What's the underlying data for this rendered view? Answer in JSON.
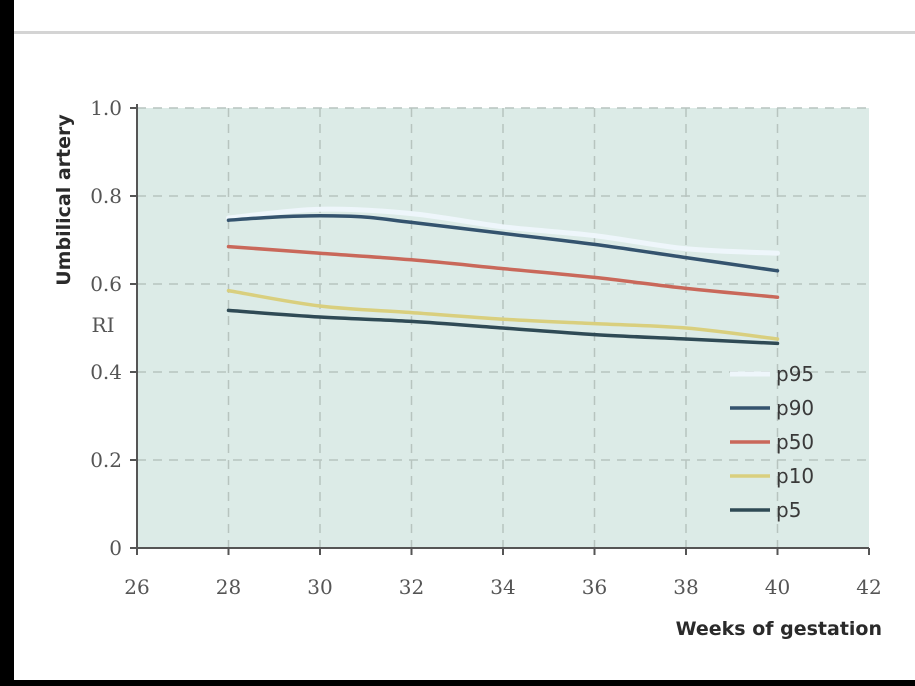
{
  "chart_data": {
    "type": "line",
    "xlabel": "Weeks of gestation",
    "ylabel_top": "Umbilical artery",
    "ylabel_inner": "RI",
    "xlim": [
      26,
      42
    ],
    "ylim": [
      0,
      1.0
    ],
    "x_ticks": [
      "26",
      "28",
      "30",
      "32",
      "34",
      "36",
      "38",
      "40",
      "42"
    ],
    "y_ticks": [
      {
        "value": 0,
        "label": "0"
      },
      {
        "value": 0.2,
        "label": "0.2"
      },
      {
        "value": 0.4,
        "label": "0.4"
      },
      {
        "value": 0.6,
        "label": "0.6"
      },
      {
        "value": 0.8,
        "label": "0.8"
      },
      {
        "value": 1.0,
        "label": "1.0"
      }
    ],
    "grid": true,
    "legend_position": "bottom-right",
    "series": [
      {
        "name": "p95",
        "color": "#eef6fb",
        "x": [
          28,
          30,
          32,
          34,
          36,
          38,
          40
        ],
        "values": [
          0.75,
          0.77,
          0.76,
          0.73,
          0.71,
          0.68,
          0.67
        ]
      },
      {
        "name": "p90",
        "color": "#34536e",
        "x": [
          28,
          29,
          30,
          31,
          32,
          34,
          36,
          38,
          40
        ],
        "values": [
          0.745,
          0.752,
          0.755,
          0.752,
          0.74,
          0.715,
          0.69,
          0.66,
          0.63
        ]
      },
      {
        "name": "p50",
        "color": "#c9685a",
        "x": [
          28,
          30,
          32,
          34,
          36,
          38,
          40
        ],
        "values": [
          0.685,
          0.67,
          0.655,
          0.635,
          0.615,
          0.59,
          0.57
        ]
      },
      {
        "name": "p10",
        "color": "#d9cf7e",
        "x": [
          28,
          30,
          32,
          34,
          36,
          38,
          40
        ],
        "values": [
          0.585,
          0.55,
          0.535,
          0.52,
          0.51,
          0.5,
          0.475
        ]
      },
      {
        "name": "p5",
        "color": "#2f4a55",
        "x": [
          28,
          30,
          32,
          34,
          36,
          38,
          40
        ],
        "values": [
          0.54,
          0.525,
          0.515,
          0.5,
          0.485,
          0.475,
          0.465
        ]
      }
    ]
  }
}
